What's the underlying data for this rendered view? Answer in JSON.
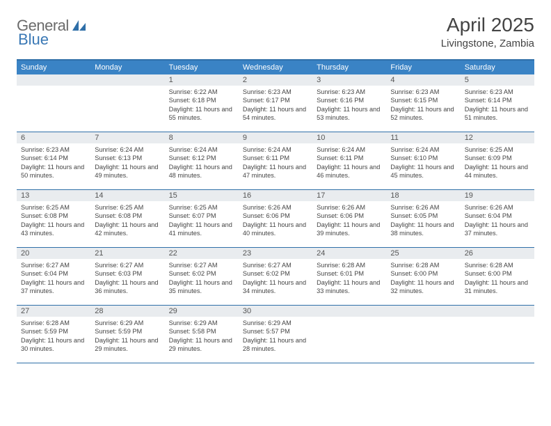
{
  "logo": {
    "general": "General",
    "blue": "Blue"
  },
  "title": "April 2025",
  "location": "Livingstone, Zambia",
  "colors": {
    "header_bar": "#3a83c5",
    "border": "#2f6fa8",
    "daynum_bg": "#e9ecef",
    "text": "#444444",
    "logo_gray": "#6b6b6b",
    "logo_blue": "#3a78b5"
  },
  "dow": [
    "Sunday",
    "Monday",
    "Tuesday",
    "Wednesday",
    "Thursday",
    "Friday",
    "Saturday"
  ],
  "weeks": [
    [
      {
        "empty": true
      },
      {
        "empty": true
      },
      {
        "day": "1",
        "sunrise": "Sunrise: 6:22 AM",
        "sunset": "Sunset: 6:18 PM",
        "daylight": "Daylight: 11 hours and 55 minutes."
      },
      {
        "day": "2",
        "sunrise": "Sunrise: 6:23 AM",
        "sunset": "Sunset: 6:17 PM",
        "daylight": "Daylight: 11 hours and 54 minutes."
      },
      {
        "day": "3",
        "sunrise": "Sunrise: 6:23 AM",
        "sunset": "Sunset: 6:16 PM",
        "daylight": "Daylight: 11 hours and 53 minutes."
      },
      {
        "day": "4",
        "sunrise": "Sunrise: 6:23 AM",
        "sunset": "Sunset: 6:15 PM",
        "daylight": "Daylight: 11 hours and 52 minutes."
      },
      {
        "day": "5",
        "sunrise": "Sunrise: 6:23 AM",
        "sunset": "Sunset: 6:14 PM",
        "daylight": "Daylight: 11 hours and 51 minutes."
      }
    ],
    [
      {
        "day": "6",
        "sunrise": "Sunrise: 6:23 AM",
        "sunset": "Sunset: 6:14 PM",
        "daylight": "Daylight: 11 hours and 50 minutes."
      },
      {
        "day": "7",
        "sunrise": "Sunrise: 6:24 AM",
        "sunset": "Sunset: 6:13 PM",
        "daylight": "Daylight: 11 hours and 49 minutes."
      },
      {
        "day": "8",
        "sunrise": "Sunrise: 6:24 AM",
        "sunset": "Sunset: 6:12 PM",
        "daylight": "Daylight: 11 hours and 48 minutes."
      },
      {
        "day": "9",
        "sunrise": "Sunrise: 6:24 AM",
        "sunset": "Sunset: 6:11 PM",
        "daylight": "Daylight: 11 hours and 47 minutes."
      },
      {
        "day": "10",
        "sunrise": "Sunrise: 6:24 AM",
        "sunset": "Sunset: 6:11 PM",
        "daylight": "Daylight: 11 hours and 46 minutes."
      },
      {
        "day": "11",
        "sunrise": "Sunrise: 6:24 AM",
        "sunset": "Sunset: 6:10 PM",
        "daylight": "Daylight: 11 hours and 45 minutes."
      },
      {
        "day": "12",
        "sunrise": "Sunrise: 6:25 AM",
        "sunset": "Sunset: 6:09 PM",
        "daylight": "Daylight: 11 hours and 44 minutes."
      }
    ],
    [
      {
        "day": "13",
        "sunrise": "Sunrise: 6:25 AM",
        "sunset": "Sunset: 6:08 PM",
        "daylight": "Daylight: 11 hours and 43 minutes."
      },
      {
        "day": "14",
        "sunrise": "Sunrise: 6:25 AM",
        "sunset": "Sunset: 6:08 PM",
        "daylight": "Daylight: 11 hours and 42 minutes."
      },
      {
        "day": "15",
        "sunrise": "Sunrise: 6:25 AM",
        "sunset": "Sunset: 6:07 PM",
        "daylight": "Daylight: 11 hours and 41 minutes."
      },
      {
        "day": "16",
        "sunrise": "Sunrise: 6:26 AM",
        "sunset": "Sunset: 6:06 PM",
        "daylight": "Daylight: 11 hours and 40 minutes."
      },
      {
        "day": "17",
        "sunrise": "Sunrise: 6:26 AM",
        "sunset": "Sunset: 6:06 PM",
        "daylight": "Daylight: 11 hours and 39 minutes."
      },
      {
        "day": "18",
        "sunrise": "Sunrise: 6:26 AM",
        "sunset": "Sunset: 6:05 PM",
        "daylight": "Daylight: 11 hours and 38 minutes."
      },
      {
        "day": "19",
        "sunrise": "Sunrise: 6:26 AM",
        "sunset": "Sunset: 6:04 PM",
        "daylight": "Daylight: 11 hours and 37 minutes."
      }
    ],
    [
      {
        "day": "20",
        "sunrise": "Sunrise: 6:27 AM",
        "sunset": "Sunset: 6:04 PM",
        "daylight": "Daylight: 11 hours and 37 minutes."
      },
      {
        "day": "21",
        "sunrise": "Sunrise: 6:27 AM",
        "sunset": "Sunset: 6:03 PM",
        "daylight": "Daylight: 11 hours and 36 minutes."
      },
      {
        "day": "22",
        "sunrise": "Sunrise: 6:27 AM",
        "sunset": "Sunset: 6:02 PM",
        "daylight": "Daylight: 11 hours and 35 minutes."
      },
      {
        "day": "23",
        "sunrise": "Sunrise: 6:27 AM",
        "sunset": "Sunset: 6:02 PM",
        "daylight": "Daylight: 11 hours and 34 minutes."
      },
      {
        "day": "24",
        "sunrise": "Sunrise: 6:28 AM",
        "sunset": "Sunset: 6:01 PM",
        "daylight": "Daylight: 11 hours and 33 minutes."
      },
      {
        "day": "25",
        "sunrise": "Sunrise: 6:28 AM",
        "sunset": "Sunset: 6:00 PM",
        "daylight": "Daylight: 11 hours and 32 minutes."
      },
      {
        "day": "26",
        "sunrise": "Sunrise: 6:28 AM",
        "sunset": "Sunset: 6:00 PM",
        "daylight": "Daylight: 11 hours and 31 minutes."
      }
    ],
    [
      {
        "day": "27",
        "sunrise": "Sunrise: 6:28 AM",
        "sunset": "Sunset: 5:59 PM",
        "daylight": "Daylight: 11 hours and 30 minutes."
      },
      {
        "day": "28",
        "sunrise": "Sunrise: 6:29 AM",
        "sunset": "Sunset: 5:59 PM",
        "daylight": "Daylight: 11 hours and 29 minutes."
      },
      {
        "day": "29",
        "sunrise": "Sunrise: 6:29 AM",
        "sunset": "Sunset: 5:58 PM",
        "daylight": "Daylight: 11 hours and 29 minutes."
      },
      {
        "day": "30",
        "sunrise": "Sunrise: 6:29 AM",
        "sunset": "Sunset: 5:57 PM",
        "daylight": "Daylight: 11 hours and 28 minutes."
      },
      {
        "empty": true
      },
      {
        "empty": true
      },
      {
        "empty": true
      }
    ]
  ]
}
